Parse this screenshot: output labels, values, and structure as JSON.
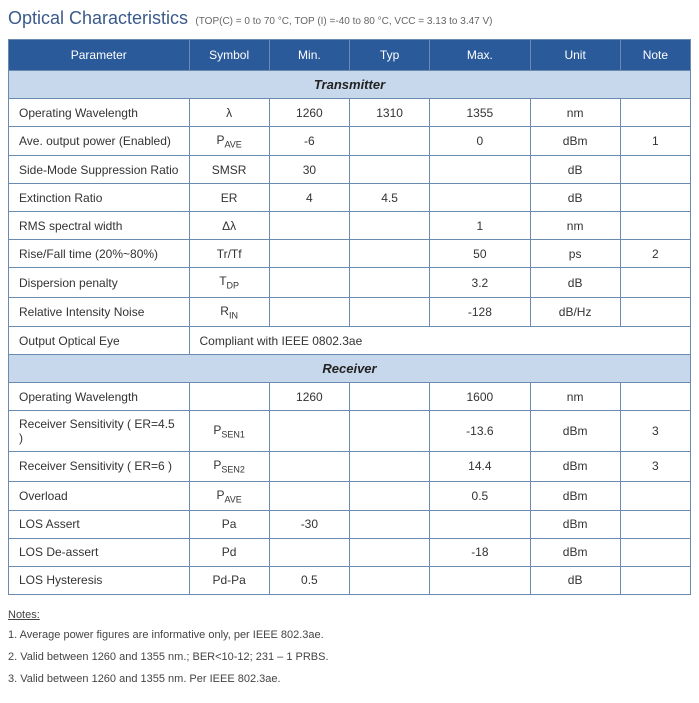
{
  "title": "Optical Characteristics",
  "subtitle": "(TOP(C) = 0 to 70 °C, TOP (I) =-40 to 80 °C, VCC = 3.13 to 3.47 V)",
  "columns": [
    "Parameter",
    "Symbol",
    "Min.",
    "Typ",
    "Max.",
    "Unit",
    "Note"
  ],
  "sections": {
    "transmitter": "Transmitter",
    "receiver": "Receiver"
  },
  "transmitter_rows": [
    {
      "param": "Operating Wavelength",
      "symbol": "λ",
      "min": "1260",
      "typ": "1310",
      "max": "1355",
      "unit": "nm",
      "note": ""
    },
    {
      "param": "Ave. output power (Enabled)",
      "symbol_html": "P<span class='sub'>AVE</span>",
      "min": "-6",
      "typ": "",
      "max": "0",
      "unit": "dBm",
      "note": "1"
    },
    {
      "param": "Side-Mode Suppression Ratio",
      "symbol": "SMSR",
      "min": "30",
      "typ": "",
      "max": "",
      "unit": "dB",
      "note": ""
    },
    {
      "param": "Extinction Ratio",
      "symbol": "ER",
      "min": "4",
      "typ": "4.5",
      "max": "",
      "unit": "dB",
      "note": ""
    },
    {
      "param": "RMS spectral width",
      "symbol": "Δλ",
      "min": "",
      "typ": "",
      "max": "1",
      "unit": "nm",
      "note": ""
    },
    {
      "param": "Rise/Fall time (20%~80%)",
      "symbol": "Tr/Tf",
      "min": "",
      "typ": "",
      "max": "50",
      "unit": "ps",
      "note": "2"
    },
    {
      "param": "Dispersion penalty",
      "symbol_html": "T<span class='sub'>DP</span>",
      "min": "",
      "typ": "",
      "max": "3.2",
      "unit": "dB",
      "note": ""
    },
    {
      "param": "Relative Intensity Noise",
      "symbol_html": "R<span class='sub'>IN</span>",
      "min": "",
      "typ": "",
      "max": "-128",
      "unit": "dB/Hz",
      "note": ""
    }
  ],
  "output_eye": {
    "label": "Output Optical Eye",
    "value": "Compliant with IEEE 0802.3ae"
  },
  "receiver_rows": [
    {
      "param": "Operating Wavelength",
      "symbol": "",
      "min": "1260",
      "typ": "",
      "max": "1600",
      "unit": "nm",
      "note": ""
    },
    {
      "param": "Receiver Sensitivity ( ER=4.5 )",
      "symbol_html": "P<span class='sub'>SEN1</span>",
      "min": "",
      "typ": "",
      "max": "-13.6",
      "unit": "dBm",
      "note": "3"
    },
    {
      "param": "Receiver Sensitivity ( ER=6 )",
      "symbol_html": "P<span class='sub'>SEN2</span>",
      "min": "",
      "typ": "",
      "max": "14.4",
      "unit": "dBm",
      "note": "3"
    },
    {
      "param": "Overload",
      "symbol_html": "P<span class='sub'>AVE</span>",
      "min": "",
      "typ": "",
      "max": "0.5",
      "unit": "dBm",
      "note": ""
    },
    {
      "param": "LOS Assert",
      "symbol": "Pa",
      "min": "-30",
      "typ": "",
      "max": "",
      "unit": "dBm",
      "note": ""
    },
    {
      "param": "LOS De-assert",
      "symbol": "Pd",
      "min": "",
      "typ": "",
      "max": "-18",
      "unit": "dBm",
      "note": ""
    },
    {
      "param": "LOS Hysteresis",
      "symbol": "Pd-Pa",
      "min": "0.5",
      "typ": "",
      "max": "",
      "unit": "dB",
      "note": ""
    }
  ],
  "notes": {
    "heading": "Notes:",
    "items": [
      "1. Average power figures are informative only, per IEEE 802.3ae.",
      "2. Valid between 1260 and 1355 nm.; BER<10-12; 231 – 1 PRBS.",
      "3. Valid between 1260 and 1355 nm. Per IEEE 802.3ae."
    ]
  }
}
